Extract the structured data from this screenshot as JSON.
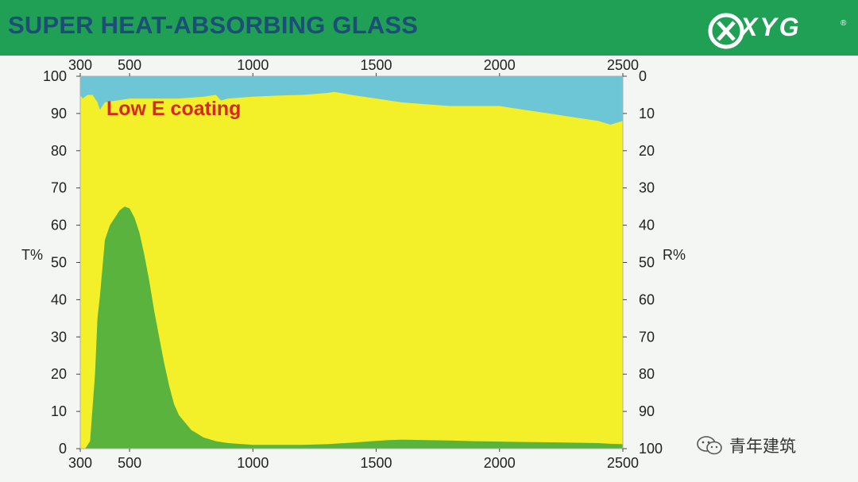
{
  "header": {
    "title": "SUPER HEAT-ABSORBING GLASS",
    "logo_text": "XYG",
    "logo_mark": "®"
  },
  "watermark": {
    "icon": "wechat-icon",
    "text": "青年建筑"
  },
  "colors": {
    "header_bg": "#1fa055",
    "title": "#1d4e78",
    "reflectance": "#6cc6d6",
    "absorbance": "#f3ef28",
    "transmittance": "#5ab33c",
    "annotation": "#d42a1f"
  },
  "chart_data": {
    "type": "area",
    "xlim": [
      300,
      2500
    ],
    "x_ticks": [
      300,
      500,
      1000,
      1500,
      2000,
      2500
    ],
    "y_left": {
      "label": "T%",
      "lim": [
        0,
        100
      ],
      "ticks": [
        0,
        10,
        20,
        30,
        40,
        50,
        60,
        70,
        80,
        90,
        100
      ]
    },
    "y_right": {
      "label": "R%",
      "lim": [
        0,
        100
      ],
      "inverted": true,
      "ticks": [
        0,
        10,
        20,
        30,
        40,
        50,
        60,
        70,
        80,
        90,
        100
      ]
    },
    "annotation": "Low E coating",
    "transmittance": {
      "x": [
        300,
        320,
        340,
        360,
        370,
        380,
        400,
        420,
        440,
        460,
        480,
        500,
        520,
        540,
        560,
        580,
        600,
        620,
        640,
        660,
        680,
        700,
        750,
        800,
        850,
        900,
        1000,
        1100,
        1200,
        1300,
        1400,
        1500,
        1550,
        1600,
        1700,
        1800,
        1900,
        2000,
        2100,
        2200,
        2300,
        2400,
        2450,
        2500
      ],
      "values": [
        0,
        0,
        2,
        20,
        35,
        41,
        56,
        60,
        62,
        64,
        65,
        64.5,
        62,
        58,
        52,
        45,
        37,
        30,
        23,
        17,
        12,
        9,
        5,
        3,
        2,
        1.5,
        1,
        1,
        1,
        1.2,
        1.6,
        2.1,
        2.3,
        2.4,
        2.3,
        2.2,
        2,
        1.9,
        1.8,
        1.7,
        1.6,
        1.5,
        1.3,
        1.2
      ]
    },
    "reflectance": {
      "x": [
        300,
        310,
        330,
        350,
        370,
        380,
        400,
        450,
        500,
        600,
        700,
        800,
        850,
        870,
        900,
        1000,
        1100,
        1200,
        1300,
        1330,
        1400,
        1500,
        1600,
        1700,
        1800,
        1900,
        2000,
        2100,
        2200,
        2300,
        2400,
        2450,
        2500
      ],
      "values": [
        5,
        6,
        5,
        5,
        7,
        9,
        7,
        6.5,
        6,
        6,
        6,
        5.5,
        5,
        6.5,
        6,
        5.5,
        5.2,
        5,
        4.5,
        4.2,
        5,
        6,
        7,
        7.5,
        8,
        8,
        8,
        9,
        10,
        11,
        12,
        13,
        12
      ]
    }
  }
}
